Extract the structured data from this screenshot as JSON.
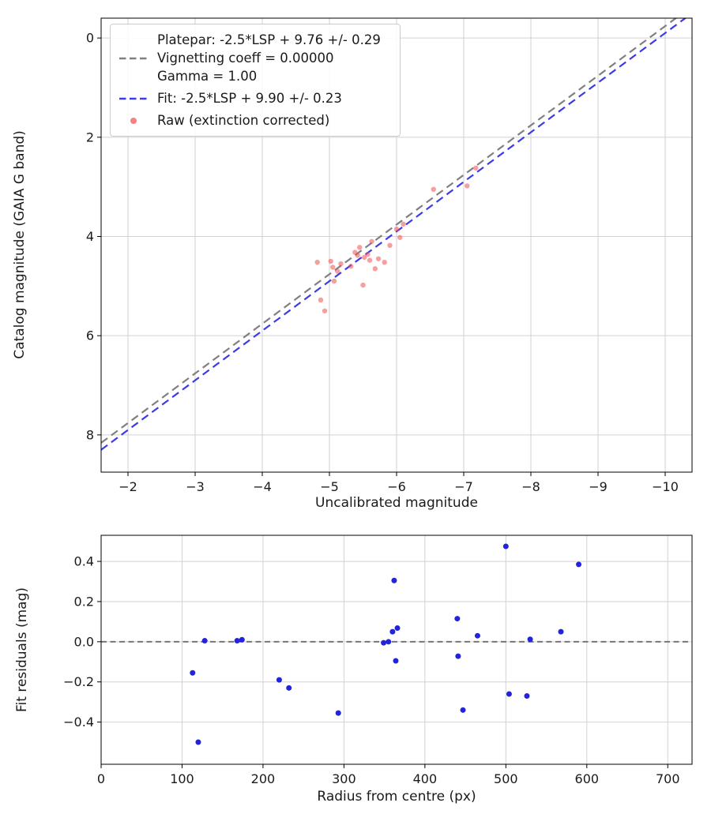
{
  "figure": {
    "background": "#ffffff",
    "text_color": "#1a1a1a",
    "grid_color": "#d2d2d2",
    "spine_color": "#000000"
  },
  "chart_data": [
    {
      "type": "scatter",
      "title": "",
      "xlabel": "Uncalibrated magnitude",
      "ylabel": "Catalog magnitude (GAIA G band)",
      "x_axis": {
        "inverted": true,
        "range_left_to_right": [
          -1.6,
          -10.4
        ],
        "tick_values": [
          -2,
          -3,
          -4,
          -5,
          -6,
          -7,
          -8,
          -9,
          -10
        ],
        "tick_labels": [
          "−2",
          "−3",
          "−4",
          "−5",
          "−6",
          "−7",
          "−8",
          "−9",
          "−10"
        ]
      },
      "y_axis": {
        "inverted": true,
        "range_top_to_bottom": [
          -0.4,
          8.75
        ],
        "tick_values": [
          0,
          2,
          4,
          6,
          8
        ],
        "tick_labels": [
          "0",
          "2",
          "4",
          "6",
          "8"
        ]
      },
      "grid": true,
      "lines": [
        {
          "name": "platepar",
          "label": "Platepar: -2.5*LSP + 9.76 +/- 0.29",
          "slope": 1,
          "intercept": 9.76,
          "color": "#808080",
          "style": "dashed"
        },
        {
          "name": "fit",
          "label": "Fit: -2.5*LSP + 9.90 +/- 0.23",
          "slope": 1,
          "intercept": 9.9,
          "color": "#3b3be8",
          "style": "dashed"
        }
      ],
      "series": [
        {
          "name": "Raw (extinction corrected)",
          "color": "#f04f4f",
          "opacity": 0.55,
          "marker": "circle",
          "marker_radius": 3.2,
          "points": [
            [
              -4.82,
              4.52
            ],
            [
              -4.87,
              5.28
            ],
            [
              -4.93,
              5.5
            ],
            [
              -5.02,
              4.5
            ],
            [
              -5.05,
              4.62
            ],
            [
              -5.07,
              4.9
            ],
            [
              -5.12,
              4.7
            ],
            [
              -5.17,
              4.55
            ],
            [
              -5.32,
              4.6
            ],
            [
              -5.38,
              4.32
            ],
            [
              -5.42,
              4.38
            ],
            [
              -5.45,
              4.22
            ],
            [
              -5.5,
              4.98
            ],
            [
              -5.52,
              4.42
            ],
            [
              -5.57,
              4.36
            ],
            [
              -5.6,
              4.48
            ],
            [
              -5.63,
              4.1
            ],
            [
              -5.68,
              4.65
            ],
            [
              -5.73,
              4.45
            ],
            [
              -5.82,
              4.52
            ],
            [
              -5.9,
              4.18
            ],
            [
              -6.0,
              3.85
            ],
            [
              -6.05,
              4.02
            ],
            [
              -6.1,
              3.75
            ],
            [
              -6.55,
              3.05
            ],
            [
              -7.05,
              2.98
            ],
            [
              -7.18,
              2.62
            ]
          ]
        }
      ],
      "legend": {
        "position": "upper left",
        "entries": [
          {
            "marker": "dashed-line",
            "label_lines": [
              "Platepar: -2.5*LSP + 9.76 +/- 0.29",
              "Vignetting coeff = 0.00000",
              "Gamma = 1.00"
            ]
          },
          {
            "marker": "dashed-line",
            "label_lines": [
              "Fit: -2.5*LSP + 9.90 +/- 0.23"
            ]
          },
          {
            "marker": "dot",
            "label_lines": [
              "Raw (extinction corrected)"
            ]
          }
        ]
      }
    },
    {
      "type": "scatter",
      "title": "",
      "xlabel": "Radius from centre (px)",
      "ylabel": "Fit residuals (mag)",
      "x_axis": {
        "inverted": false,
        "range_left_to_right": [
          0,
          730
        ],
        "tick_values": [
          0,
          100,
          200,
          300,
          400,
          500,
          600,
          700
        ],
        "tick_labels": [
          "0",
          "100",
          "200",
          "300",
          "400",
          "500",
          "600",
          "700"
        ]
      },
      "y_axis": {
        "inverted": false,
        "range_top_to_bottom": [
          0.53,
          -0.61
        ],
        "tick_values": [
          -0.4,
          -0.2,
          0,
          0.2,
          0.4
        ],
        "tick_labels": [
          "−0.4",
          "−0.2",
          "0.0",
          "0.2",
          "0.4"
        ]
      },
      "grid": true,
      "reference_line": {
        "y": 0,
        "color": "#6e6e6e",
        "style": "dashed"
      },
      "series": [
        {
          "name": "Fit residuals",
          "color": "#2323dc",
          "opacity": 1,
          "marker": "circle",
          "marker_radius": 3.5,
          "points": [
            [
              113,
              -0.155
            ],
            [
              120,
              -0.5
            ],
            [
              128,
              0.005
            ],
            [
              168,
              0.005
            ],
            [
              174,
              0.01
            ],
            [
              220,
              -0.19
            ],
            [
              232,
              -0.23
            ],
            [
              293,
              -0.355
            ],
            [
              349,
              -0.005
            ],
            [
              355,
              0.0
            ],
            [
              360,
              0.05
            ],
            [
              362,
              0.305
            ],
            [
              364,
              -0.095
            ],
            [
              366,
              0.068
            ],
            [
              440,
              0.115
            ],
            [
              441,
              -0.072
            ],
            [
              447,
              -0.34
            ],
            [
              465,
              0.03
            ],
            [
              500,
              0.475
            ],
            [
              504,
              -0.26
            ],
            [
              526,
              -0.27
            ],
            [
              530,
              0.012
            ],
            [
              568,
              0.05
            ],
            [
              590,
              0.385
            ]
          ]
        }
      ]
    }
  ]
}
